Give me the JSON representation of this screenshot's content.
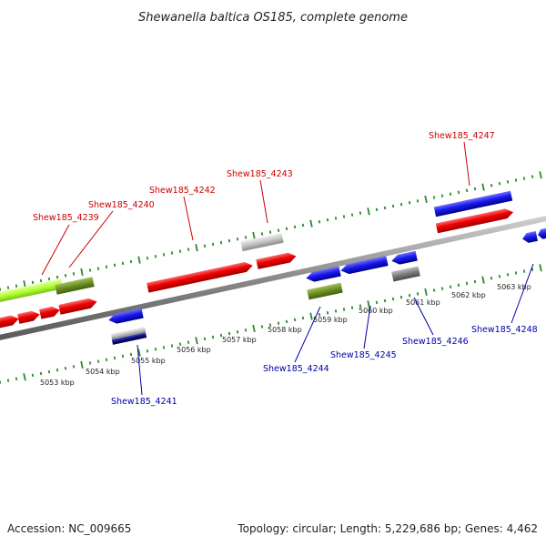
{
  "title": "Shewanella baltica OS185, complete genome",
  "footer": {
    "accession": "Accession: NC_009665",
    "summary": "Topology: circular; Length: 5,229,686 bp; Genes: 4,462"
  },
  "colors": {
    "forward": "#ee0000",
    "reverse": "#1a1aee",
    "rna": "#bdbdbd",
    "other": "#6b8e23",
    "highlight": "#adff2f",
    "label_top": "#cc0000",
    "label_bottom": "#0000aa",
    "tick": "#2a8a2a"
  },
  "scale_labels": [
    "5053 kbp",
    "5054 kbp",
    "5055 kbp",
    "5056 kbp",
    "5057 kbp",
    "5058 kbp",
    "5059 kbp",
    "5060 kbp",
    "5061 kbp",
    "5062 kbp",
    "5063 kbp"
  ],
  "genes_top": [
    {
      "name": "Shew185_4239"
    },
    {
      "name": "Shew185_4240"
    },
    {
      "name": "Shew185_4242"
    },
    {
      "name": "Shew185_4243"
    },
    {
      "name": "Shew185_4247"
    }
  ],
  "genes_bottom": [
    {
      "name": "Shew185_4241"
    },
    {
      "name": "Shew185_4244"
    },
    {
      "name": "Shew185_4245"
    },
    {
      "name": "Shew185_4246"
    },
    {
      "name": "Shew185_4248"
    }
  ]
}
